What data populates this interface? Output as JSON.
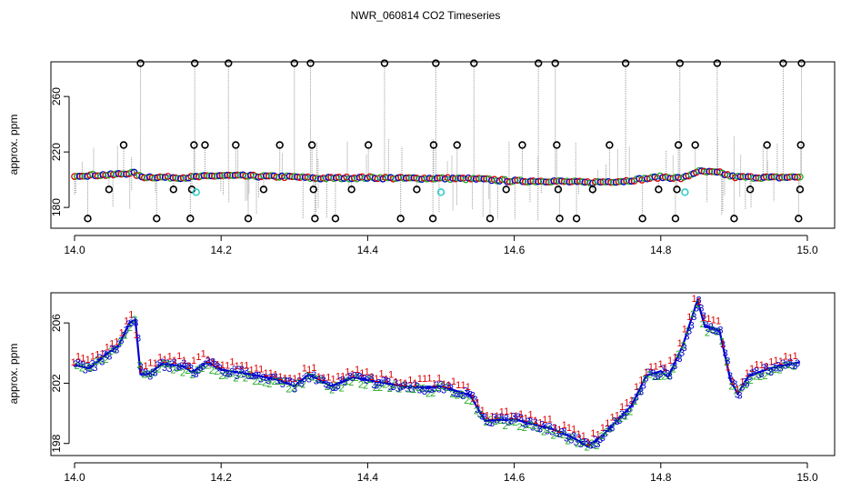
{
  "title": "NWR_060814  CO2 Timeseries",
  "colors": {
    "series1": "#dd0000",
    "series2": "#22aa22",
    "series3": "#0000cc",
    "flagged": "#000000",
    "special": "#33cccc",
    "spike_line": "#999999"
  },
  "chart_data": [
    {
      "type": "scatter",
      "name": "raw-timeseries",
      "title": "NWR_060814  CO2 Timeseries",
      "xlabel": "",
      "ylabel": "approx. ppm",
      "xlim": [
        14.0,
        15.0
      ],
      "ylim": [
        165,
        285
      ],
      "xticks": [
        "14.0",
        "14.2",
        "14.4",
        "14.6",
        "14.8",
        "15.0"
      ],
      "yticks": [
        "180",
        "220",
        "260"
      ],
      "baseline": [
        [
          14.0,
          203
        ],
        [
          14.05,
          203.5
        ],
        [
          14.08,
          205
        ],
        [
          14.09,
          202
        ],
        [
          14.15,
          201.5
        ],
        [
          14.2,
          203
        ],
        [
          14.3,
          202
        ],
        [
          14.33,
          201
        ],
        [
          14.4,
          201.5
        ],
        [
          14.45,
          201
        ],
        [
          14.5,
          201
        ],
        [
          14.55,
          200.5
        ],
        [
          14.6,
          199
        ],
        [
          14.65,
          199
        ],
        [
          14.7,
          198
        ],
        [
          14.75,
          199
        ],
        [
          14.8,
          202
        ],
        [
          14.83,
          201
        ],
        [
          14.85,
          206
        ],
        [
          14.88,
          205
        ],
        [
          14.9,
          202
        ],
        [
          14.95,
          201.5
        ],
        [
          14.99,
          202
        ]
      ],
      "flagged_points": [
        [
          14.018,
          172
        ],
        [
          14.047,
          193
        ],
        [
          14.067,
          225
        ],
        [
          14.09,
          284
        ],
        [
          14.112,
          172
        ],
        [
          14.135,
          193
        ],
        [
          14.158,
          172
        ],
        [
          14.16,
          193
        ],
        [
          14.163,
          225
        ],
        [
          14.164,
          284
        ],
        [
          14.178,
          225
        ],
        [
          14.21,
          284
        ],
        [
          14.22,
          225
        ],
        [
          14.237,
          172
        ],
        [
          14.258,
          193
        ],
        [
          14.28,
          225
        ],
        [
          14.3,
          284
        ],
        [
          14.322,
          284
        ],
        [
          14.324,
          225
        ],
        [
          14.326,
          193
        ],
        [
          14.328,
          172
        ],
        [
          14.356,
          172
        ],
        [
          14.378,
          193
        ],
        [
          14.401,
          225
        ],
        [
          14.423,
          284
        ],
        [
          14.445,
          172
        ],
        [
          14.467,
          193
        ],
        [
          14.489,
          172
        ],
        [
          14.49,
          225
        ],
        [
          14.493,
          284
        ],
        [
          14.522,
          225
        ],
        [
          14.545,
          284
        ],
        [
          14.567,
          172
        ],
        [
          14.589,
          193
        ],
        [
          14.611,
          225
        ],
        [
          14.633,
          284
        ],
        [
          14.656,
          284
        ],
        [
          14.658,
          225
        ],
        [
          14.66,
          193
        ],
        [
          14.662,
          172
        ],
        [
          14.685,
          172
        ],
        [
          14.707,
          193
        ],
        [
          14.73,
          225
        ],
        [
          14.752,
          284
        ],
        [
          14.775,
          172
        ],
        [
          14.797,
          193
        ],
        [
          14.82,
          172
        ],
        [
          14.822,
          193
        ],
        [
          14.824,
          225
        ],
        [
          14.826,
          284
        ],
        [
          14.847,
          225
        ],
        [
          14.877,
          284
        ],
        [
          14.9,
          172
        ],
        [
          14.922,
          193
        ],
        [
          14.945,
          225
        ],
        [
          14.967,
          284
        ],
        [
          14.988,
          172
        ],
        [
          14.99,
          193
        ],
        [
          14.991,
          225
        ],
        [
          14.992,
          284
        ]
      ],
      "special_points": [
        [
          14.166,
          191
        ],
        [
          14.5,
          191
        ],
        [
          14.833,
          191
        ]
      ]
    },
    {
      "type": "scatter",
      "name": "zoomed-timeseries",
      "title": "",
      "xlabel": "",
      "ylabel": "approx. ppm",
      "xlim": [
        14.0,
        15.0
      ],
      "ylim": [
        197.2,
        208.0
      ],
      "xticks": [
        "14.0",
        "14.2",
        "14.4",
        "14.6",
        "14.8",
        "15.0"
      ],
      "yticks": [
        "198",
        "202",
        "206"
      ],
      "legend_symbols": [
        "1",
        "2",
        "3"
      ],
      "series_trend": [
        [
          14.0,
          203.2
        ],
        [
          14.02,
          203.0
        ],
        [
          14.04,
          203.8
        ],
        [
          14.06,
          204.5
        ],
        [
          14.075,
          206.0
        ],
        [
          14.083,
          206.2
        ],
        [
          14.09,
          202.6
        ],
        [
          14.1,
          202.6
        ],
        [
          14.12,
          203.3
        ],
        [
          14.15,
          203.1
        ],
        [
          14.16,
          202.7
        ],
        [
          14.18,
          203.4
        ],
        [
          14.2,
          202.9
        ],
        [
          14.25,
          202.5
        ],
        [
          14.28,
          202.2
        ],
        [
          14.3,
          201.8
        ],
        [
          14.32,
          202.6
        ],
        [
          14.35,
          201.8
        ],
        [
          14.38,
          202.4
        ],
        [
          14.4,
          202.2
        ],
        [
          14.45,
          201.8
        ],
        [
          14.48,
          201.7
        ],
        [
          14.5,
          201.8
        ],
        [
          14.54,
          201.2
        ],
        [
          14.56,
          199.5
        ],
        [
          14.6,
          199.6
        ],
        [
          14.65,
          199.0
        ],
        [
          14.68,
          198.4
        ],
        [
          14.7,
          197.8
        ],
        [
          14.72,
          198.5
        ],
        [
          14.74,
          199.5
        ],
        [
          14.76,
          200.5
        ],
        [
          14.78,
          202.5
        ],
        [
          14.8,
          202.8
        ],
        [
          14.81,
          202.4
        ],
        [
          14.83,
          204.5
        ],
        [
          14.85,
          207.5
        ],
        [
          14.86,
          205.8
        ],
        [
          14.88,
          205.5
        ],
        [
          14.895,
          202.2
        ],
        [
          14.905,
          201.3
        ],
        [
          14.92,
          202.5
        ],
        [
          14.95,
          203.0
        ],
        [
          14.99,
          203.4
        ]
      ]
    }
  ]
}
